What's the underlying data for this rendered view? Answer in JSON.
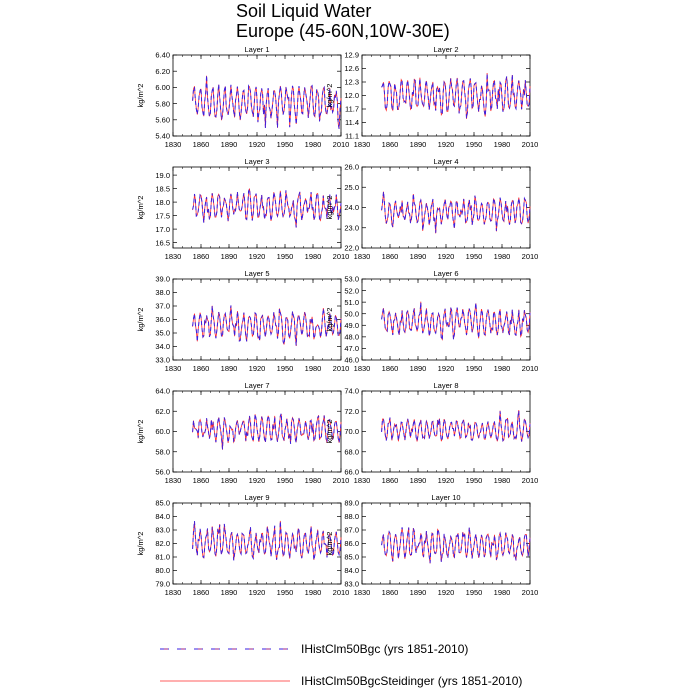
{
  "figure": {
    "title_line1": "Soil Liquid Water",
    "title_line2": "Europe (45-60N,10W-30E)"
  },
  "legend": [
    {
      "label": "IHistClm50Bgc (yrs 1851-2010)",
      "color": "#3a1fe0",
      "style": "dashed"
    },
    {
      "label": "IHistClm50BgcSteidinger (yrs 1851-2010)",
      "color": "#ff2a2a",
      "style": "solid"
    }
  ],
  "chart_data": [
    {
      "type": "line",
      "title": "Layer 1",
      "ylabel": "kg/m^2",
      "xlim": [
        1830,
        2010
      ],
      "ylim": [
        5.4,
        6.4
      ],
      "xticks": [
        "1830",
        "1860",
        "1890",
        "1920",
        "1950",
        "1980",
        "2010"
      ],
      "yticks": [
        "5.40",
        "5.60",
        "5.80",
        "6.00",
        "6.20",
        "6.40"
      ],
      "x_range": [
        1851,
        2010
      ],
      "mean": 5.82,
      "amplitude": 0.32,
      "series": [
        {
          "name": "IHistClm50Bgc (yrs 1851-2010)"
        },
        {
          "name": "IHistClm50BgcSteidinger (yrs 1851-2010)"
        }
      ]
    },
    {
      "type": "line",
      "title": "Layer 2",
      "ylabel": "kg/m^2",
      "xlim": [
        1830,
        2010
      ],
      "ylim": [
        11.1,
        12.9
      ],
      "xticks": [
        "1830",
        "1860",
        "1890",
        "1920",
        "1950",
        "1980",
        "2010"
      ],
      "yticks": [
        "11.1",
        "11.4",
        "11.7",
        "12.0",
        "12.3",
        "12.6",
        "12.9"
      ],
      "x_range": [
        1851,
        2010
      ],
      "mean": 12.0,
      "amplitude": 0.55,
      "series": [
        {
          "name": "IHistClm50Bgc (yrs 1851-2010)"
        },
        {
          "name": "IHistClm50BgcSteidinger (yrs 1851-2010)"
        }
      ]
    },
    {
      "type": "line",
      "title": "Layer 3",
      "ylabel": "kg/m^2",
      "xlim": [
        1830,
        2010
      ],
      "ylim": [
        16.3,
        19.3
      ],
      "xticks": [
        "1830",
        "1860",
        "1890",
        "1920",
        "1950",
        "1980",
        "2010"
      ],
      "yticks": [
        "16.5",
        "17.0",
        "17.5",
        "18.0",
        "18.5",
        "19.0"
      ],
      "x_range": [
        1851,
        2010
      ],
      "mean": 17.85,
      "amplitude": 0.8,
      "series": [
        {
          "name": "IHistClm50Bgc (yrs 1851-2010)"
        },
        {
          "name": "IHistClm50BgcSteidinger (yrs 1851-2010)"
        }
      ]
    },
    {
      "type": "line",
      "title": "Layer 4",
      "ylabel": "kg/m^2",
      "xlim": [
        1830,
        2010
      ],
      "ylim": [
        22.0,
        26.0
      ],
      "xticks": [
        "1830",
        "1860",
        "1890",
        "1920",
        "1950",
        "1980",
        "2010"
      ],
      "yticks": [
        "22.0",
        "23.0",
        "24.0",
        "25.0",
        "26.0"
      ],
      "x_range": [
        1851,
        2010
      ],
      "mean": 23.8,
      "amplitude": 1.0,
      "series": [
        {
          "name": "IHistClm50Bgc (yrs 1851-2010)"
        },
        {
          "name": "IHistClm50BgcSteidinger (yrs 1851-2010)"
        }
      ]
    },
    {
      "type": "line",
      "title": "Layer 5",
      "ylabel": "kg/m^2",
      "xlim": [
        1830,
        2010
      ],
      "ylim": [
        33.0,
        39.0
      ],
      "xticks": [
        "1830",
        "1860",
        "1890",
        "1920",
        "1950",
        "1980",
        "2010"
      ],
      "yticks": [
        "33.0",
        "34.0",
        "35.0",
        "36.0",
        "37.0",
        "38.0",
        "39.0"
      ],
      "x_range": [
        1851,
        2010
      ],
      "mean": 35.6,
      "amplitude": 1.5,
      "series": [
        {
          "name": "IHistClm50Bgc (yrs 1851-2010)"
        },
        {
          "name": "IHistClm50BgcSteidinger (yrs 1851-2010)"
        }
      ]
    },
    {
      "type": "line",
      "title": "Layer 6",
      "ylabel": "kg/m^2",
      "xlim": [
        1830,
        2010
      ],
      "ylim": [
        46.0,
        53.0
      ],
      "xticks": [
        "1830",
        "1860",
        "1890",
        "1920",
        "1950",
        "1980",
        "2010"
      ],
      "yticks": [
        "46.0",
        "47.0",
        "48.0",
        "49.0",
        "50.0",
        "51.0",
        "52.0",
        "53.0"
      ],
      "x_range": [
        1851,
        2010
      ],
      "mean": 49.3,
      "amplitude": 1.8,
      "series": [
        {
          "name": "IHistClm50Bgc (yrs 1851-2010)"
        },
        {
          "name": "IHistClm50BgcSteidinger (yrs 1851-2010)"
        }
      ]
    },
    {
      "type": "line",
      "title": "Layer 7",
      "ylabel": "kg/m^2",
      "xlim": [
        1830,
        2010
      ],
      "ylim": [
        56.0,
        64.0
      ],
      "xticks": [
        "1830",
        "1860",
        "1890",
        "1920",
        "1950",
        "1980",
        "2010"
      ],
      "yticks": [
        "56.0",
        "58.0",
        "60.0",
        "62.0",
        "64.0"
      ],
      "x_range": [
        1851,
        2010
      ],
      "mean": 60.2,
      "amplitude": 2.0,
      "series": [
        {
          "name": "IHistClm50Bgc (yrs 1851-2010)"
        },
        {
          "name": "IHistClm50BgcSteidinger (yrs 1851-2010)"
        }
      ]
    },
    {
      "type": "line",
      "title": "Layer 8",
      "ylabel": "kg/m^2",
      "xlim": [
        1830,
        2010
      ],
      "ylim": [
        66.0,
        74.0
      ],
      "xticks": [
        "1830",
        "1860",
        "1890",
        "1920",
        "1950",
        "1980",
        "2010"
      ],
      "yticks": [
        "66.0",
        "68.0",
        "70.0",
        "72.0",
        "74.0"
      ],
      "x_range": [
        1851,
        2010
      ],
      "mean": 70.2,
      "amplitude": 1.7,
      "series": [
        {
          "name": "IHistClm50Bgc (yrs 1851-2010)"
        },
        {
          "name": "IHistClm50BgcSteidinger (yrs 1851-2010)"
        }
      ]
    },
    {
      "type": "line",
      "title": "Layer 9",
      "ylabel": "kg/m^2",
      "xlim": [
        1830,
        2010
      ],
      "ylim": [
        79.0,
        85.0
      ],
      "xticks": [
        "1830",
        "1860",
        "1890",
        "1920",
        "1950",
        "1980",
        "2010"
      ],
      "yticks": [
        "79.0",
        "80.0",
        "81.0",
        "82.0",
        "83.0",
        "84.0",
        "85.0"
      ],
      "x_range": [
        1851,
        2010
      ],
      "mean": 82.0,
      "amplitude": 1.6,
      "series": [
        {
          "name": "IHistClm50Bgc (yrs 1851-2010)"
        },
        {
          "name": "IHistClm50BgcSteidinger (yrs 1851-2010)"
        }
      ]
    },
    {
      "type": "line",
      "title": "Layer 10",
      "ylabel": "kg/m^2",
      "xlim": [
        1830,
        2010
      ],
      "ylim": [
        83.0,
        89.0
      ],
      "xticks": [
        "1830",
        "1860",
        "1890",
        "1920",
        "1950",
        "1980",
        "2010"
      ],
      "yticks": [
        "83.0",
        "84.0",
        "85.0",
        "86.0",
        "87.0",
        "88.0",
        "89.0"
      ],
      "x_range": [
        1851,
        2010
      ],
      "mean": 85.9,
      "amplitude": 1.5,
      "series": [
        {
          "name": "IHistClm50Bgc (yrs 1851-2010)"
        },
        {
          "name": "IHistClm50BgcSteidinger (yrs 1851-2010)"
        }
      ]
    }
  ]
}
